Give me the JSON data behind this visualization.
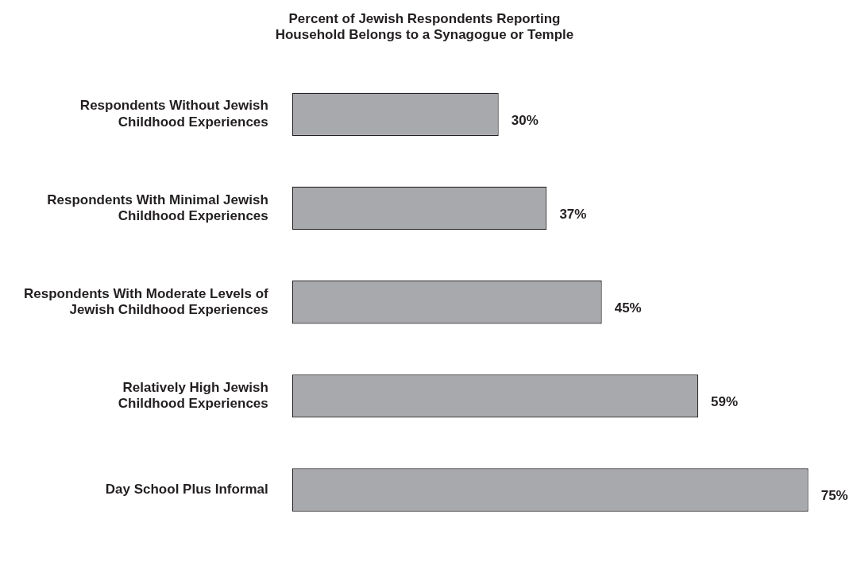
{
  "chart_data": {
    "type": "bar",
    "orientation": "horizontal",
    "title": "Percent of Jewish Respondents Reporting\nHousehold Belongs to a Synagogue or Temple",
    "categories": [
      "Respondents Without Jewish\nChildhood Experiences",
      "Respondents With Minimal Jewish\nChildhood Experiences",
      "Respondents With Moderate Levels of\nJewish Childhood Experiences",
      "Relatively High Jewish\nChildhood Experiences",
      "Day School Plus Informal"
    ],
    "values": [
      30,
      37,
      45,
      59,
      75
    ],
    "value_labels": [
      "30%",
      "37%",
      "45%",
      "59%",
      "75%"
    ],
    "color": "#a7a9ac",
    "legend": false
  }
}
